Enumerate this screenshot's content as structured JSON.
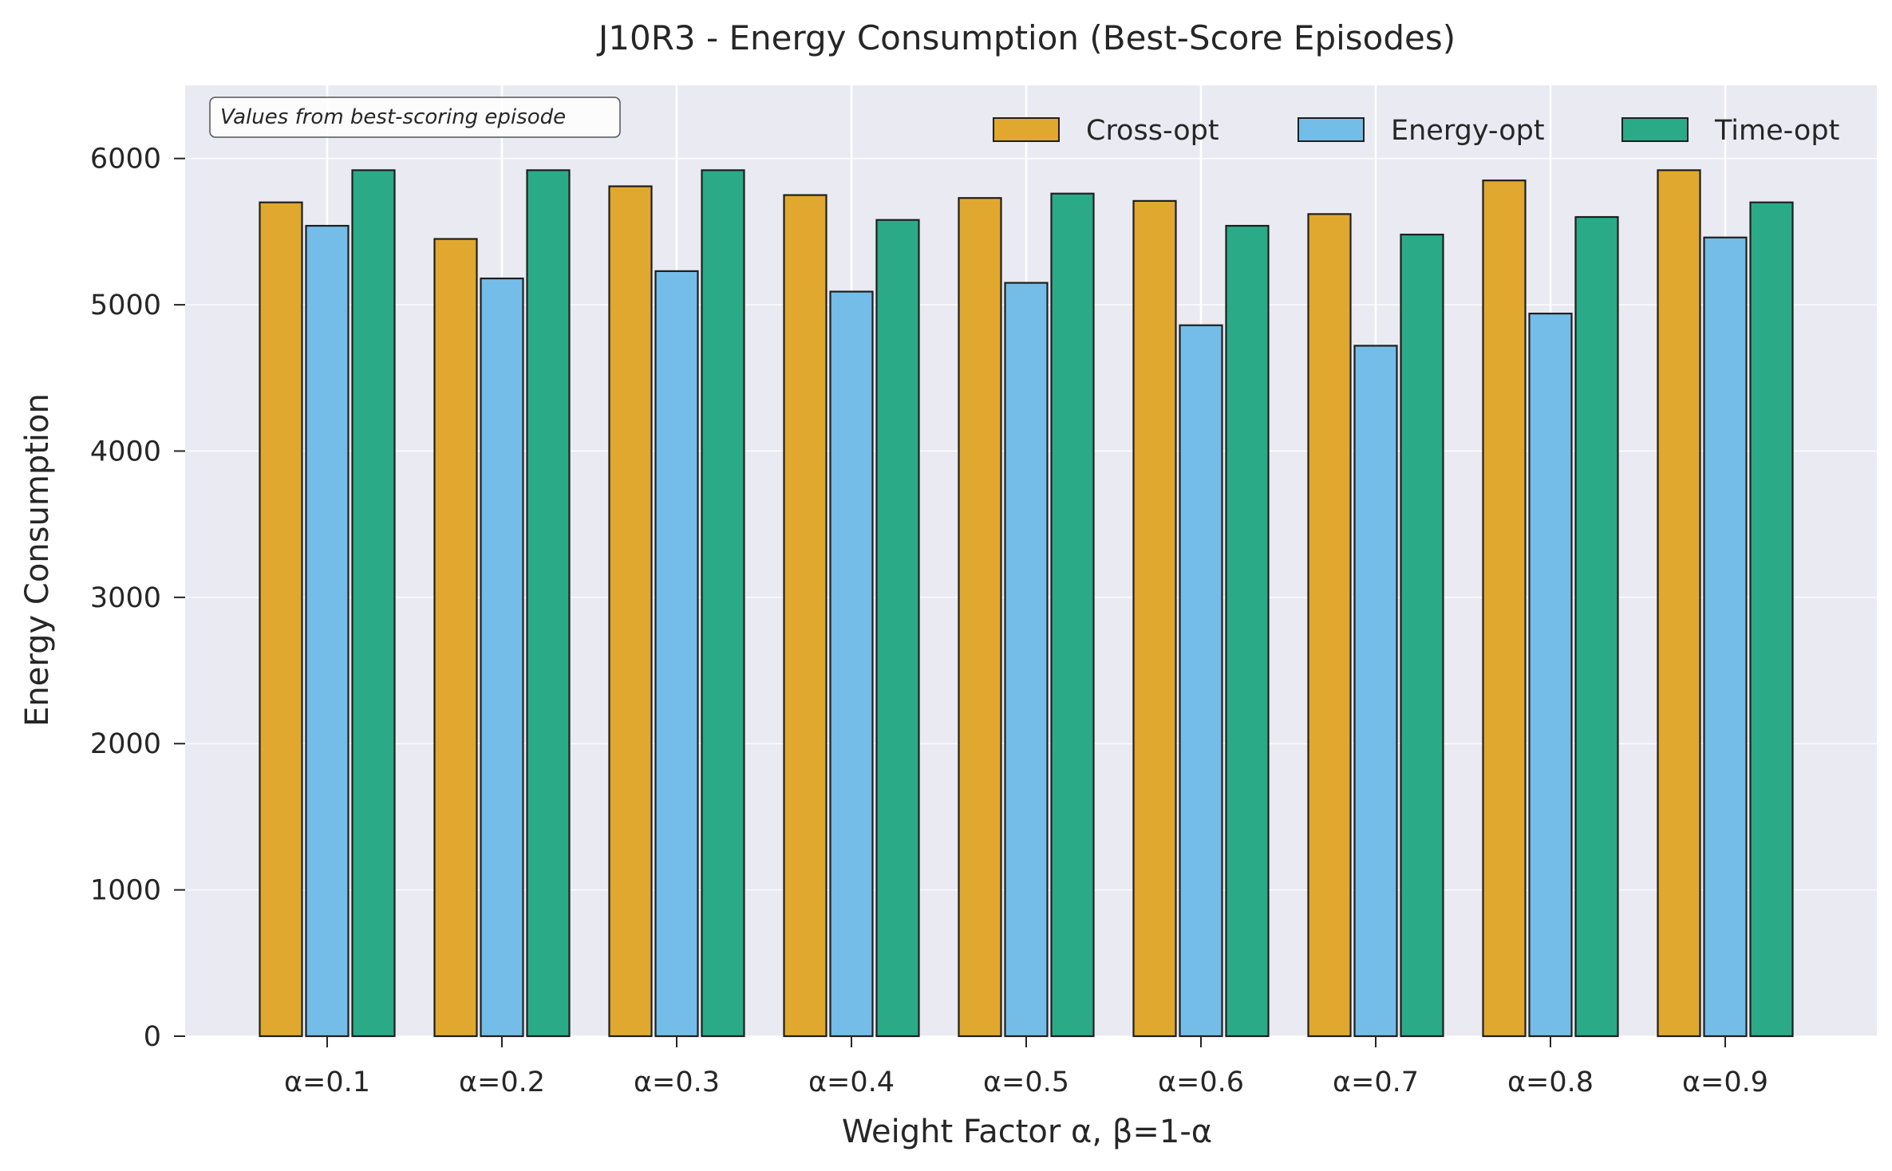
{
  "chart_data": {
    "type": "bar",
    "title": "J10R3 - Energy Consumption (Best-Score Episodes)",
    "xlabel": "Weight Factor α, β=1-α",
    "ylabel": "Energy Consumption",
    "categories": [
      "α=0.1",
      "α=0.2",
      "α=0.3",
      "α=0.4",
      "α=0.5",
      "α=0.6",
      "α=0.7",
      "α=0.8",
      "α=0.9"
    ],
    "series": [
      {
        "name": "Cross-opt",
        "color": "#E0A82E",
        "values": [
          5700,
          5450,
          5810,
          5750,
          5730,
          5710,
          5620,
          5850,
          5920
        ]
      },
      {
        "name": "Energy-opt",
        "color": "#74BDE8",
        "values": [
          5540,
          5180,
          5230,
          5090,
          5150,
          4860,
          4720,
          4940,
          5460
        ]
      },
      {
        "name": "Time-opt",
        "color": "#2BAA88",
        "values": [
          5920,
          5920,
          5920,
          5580,
          5760,
          5540,
          5480,
          5600,
          5700
        ]
      }
    ],
    "ylim": [
      0,
      6500
    ],
    "yticks": [
      0,
      1000,
      2000,
      3000,
      4000,
      5000,
      6000
    ],
    "grid": true,
    "legend_position": "top-right",
    "annotation": "Values from best-scoring episode",
    "background_color": "#EAEAF2"
  }
}
